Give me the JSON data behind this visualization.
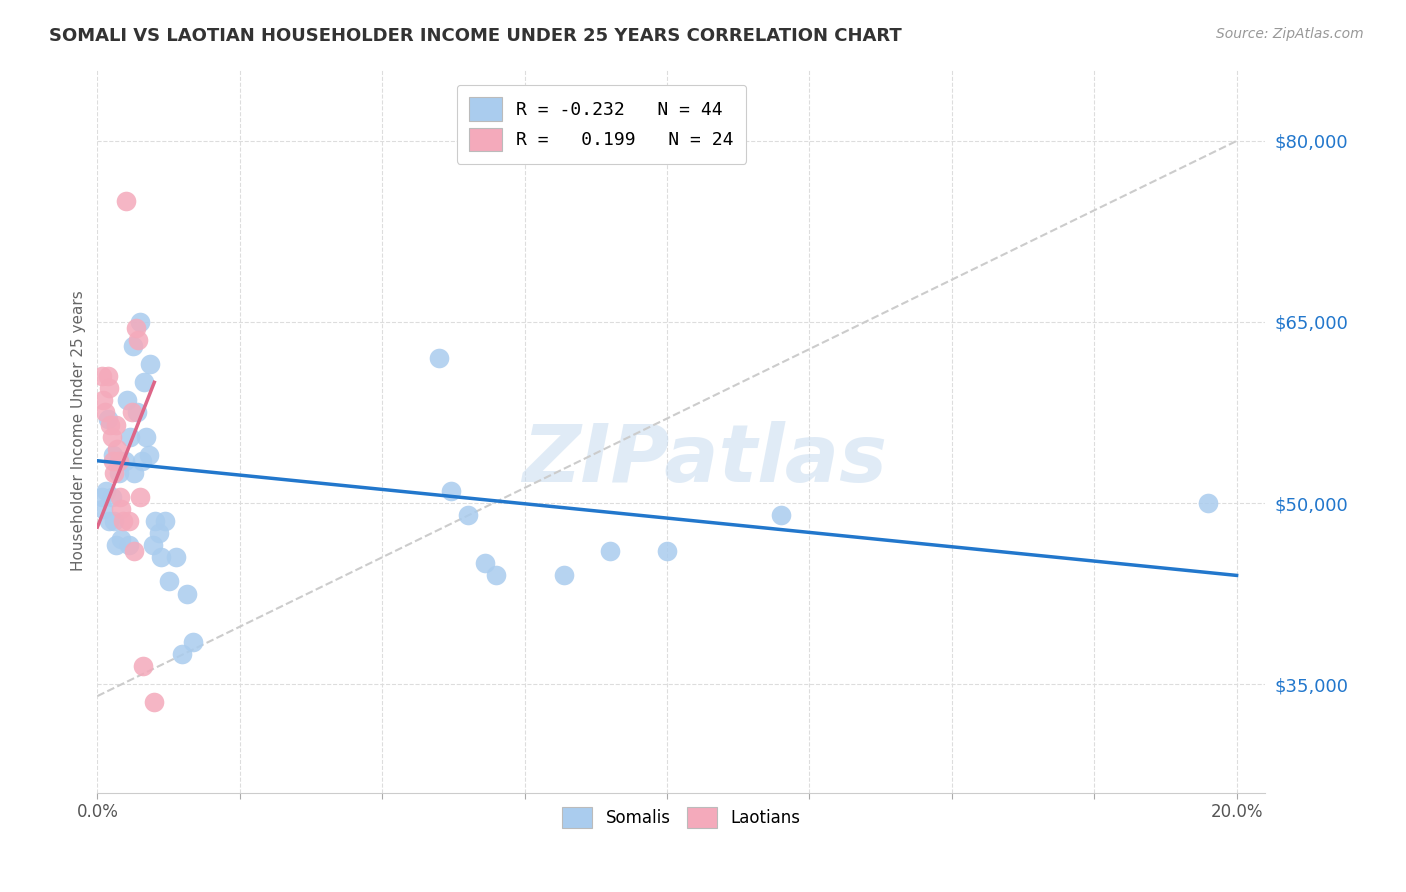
{
  "title": "SOMALI VS LAOTIAN HOUSEHOLDER INCOME UNDER 25 YEARS CORRELATION CHART",
  "source": "Source: ZipAtlas.com",
  "ylabel": "Householder Income Under 25 years",
  "watermark": "ZIPatlas",
  "legend_blue_r": "-0.232",
  "legend_blue_n": "44",
  "legend_pink_r": "0.199",
  "legend_pink_n": "24",
  "blue_color": "#AACCEE",
  "pink_color": "#F4AABB",
  "blue_line_color": "#2277CC",
  "pink_line_color": "#DD6688",
  "dashed_line_color": "#CCCCCC",
  "yticks": [
    35000,
    50000,
    65000,
    80000
  ],
  "ytick_labels": [
    "$35,000",
    "$50,000",
    "$65,000",
    "$80,000"
  ],
  "xlim": [
    0.0,
    0.205
  ],
  "ylim": [
    26000,
    86000
  ],
  "somali_x": [
    0.0008,
    0.001,
    0.0015,
    0.0018,
    0.002,
    0.0025,
    0.0028,
    0.003,
    0.0032,
    0.0038,
    0.0042,
    0.0048,
    0.0052,
    0.0055,
    0.0058,
    0.0062,
    0.0065,
    0.007,
    0.0075,
    0.0078,
    0.0082,
    0.0085,
    0.009,
    0.0093,
    0.0098,
    0.0102,
    0.0108,
    0.0112,
    0.0118,
    0.0125,
    0.0138,
    0.0148,
    0.0158,
    0.0168,
    0.06,
    0.062,
    0.065,
    0.068,
    0.07,
    0.082,
    0.09,
    0.1,
    0.12,
    0.195
  ],
  "somali_y": [
    50500,
    49500,
    51000,
    57000,
    48500,
    50500,
    54000,
    48500,
    46500,
    52500,
    47000,
    53500,
    58500,
    46500,
    55500,
    63000,
    52500,
    57500,
    65000,
    53500,
    60000,
    55500,
    54000,
    61500,
    46500,
    48500,
    47500,
    45500,
    48500,
    43500,
    45500,
    37500,
    42500,
    38500,
    62000,
    51000,
    49000,
    45000,
    44000,
    44000,
    46000,
    46000,
    49000,
    50000
  ],
  "laotian_x": [
    0.0008,
    0.001,
    0.0013,
    0.0018,
    0.002,
    0.0022,
    0.0025,
    0.0028,
    0.003,
    0.0033,
    0.0035,
    0.0038,
    0.004,
    0.0042,
    0.0045,
    0.005,
    0.0055,
    0.006,
    0.0065,
    0.0068,
    0.0072,
    0.0075,
    0.008,
    0.01
  ],
  "laotian_y": [
    60500,
    58500,
    57500,
    60500,
    59500,
    56500,
    55500,
    53500,
    52500,
    56500,
    54500,
    53500,
    50500,
    49500,
    48500,
    75000,
    48500,
    57500,
    46000,
    64500,
    63500,
    50500,
    36500,
    33500
  ],
  "somali_trend_x": [
    0.0,
    0.2
  ],
  "somali_trend_y": [
    53500,
    44000
  ],
  "laotian_trend_x": [
    0.0,
    0.01
  ],
  "laotian_trend_y": [
    48000,
    60000
  ],
  "dashed_trend_x": [
    0.0,
    0.2
  ],
  "dashed_trend_y": [
    34000,
    80000
  ]
}
